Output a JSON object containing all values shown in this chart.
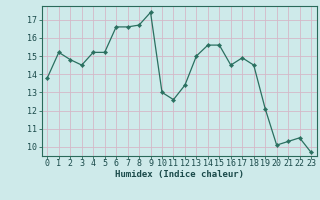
{
  "x": [
    0,
    1,
    2,
    3,
    4,
    5,
    6,
    7,
    8,
    9,
    10,
    11,
    12,
    13,
    14,
    15,
    16,
    17,
    18,
    19,
    20,
    21,
    22,
    23
  ],
  "y": [
    13.8,
    15.2,
    14.8,
    14.5,
    15.2,
    15.2,
    16.6,
    16.6,
    16.7,
    17.4,
    13.0,
    12.6,
    13.4,
    15.0,
    15.6,
    15.6,
    14.5,
    14.9,
    14.5,
    12.1,
    10.1,
    10.3,
    10.5,
    9.7
  ],
  "bg_color": "#ceeaea",
  "grid_color": "#d4b8c8",
  "line_color": "#2a7060",
  "marker_color": "#2a7060",
  "xlabel": "Humidex (Indice chaleur)",
  "ylim": [
    9.5,
    17.75
  ],
  "xlim": [
    -0.5,
    23.5
  ],
  "yticks": [
    10,
    11,
    12,
    13,
    14,
    15,
    16,
    17
  ],
  "xticks": [
    0,
    1,
    2,
    3,
    4,
    5,
    6,
    7,
    8,
    9,
    10,
    11,
    12,
    13,
    14,
    15,
    16,
    17,
    18,
    19,
    20,
    21,
    22,
    23
  ],
  "label_fontsize": 6.5,
  "tick_fontsize": 6.0
}
